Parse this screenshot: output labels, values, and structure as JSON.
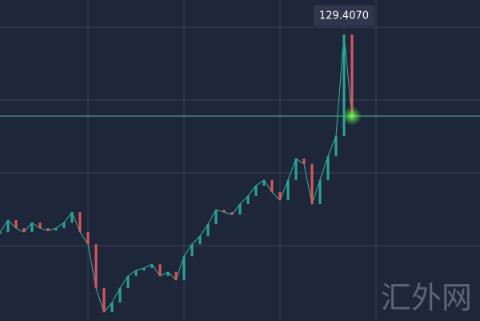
{
  "chart_data": {
    "type": "line",
    "values": [
      122.02,
      122.47,
      122.17,
      122.02,
      122.38,
      122.17,
      122.08,
      122.17,
      122.38,
      122.77,
      122.02,
      121.57,
      119.93,
      119.03,
      119.39,
      119.93,
      120.38,
      120.59,
      120.68,
      120.82,
      120.38,
      120.53,
      120.23,
      121.12,
      121.57,
      121.87,
      122.32,
      122.86,
      122.77,
      122.68,
      123.07,
      123.37,
      123.76,
      123.97,
      123.52,
      123.22,
      123.97,
      124.77,
      124.57,
      123.07,
      123.97,
      124.86,
      125.61,
      129.407,
      126.36
    ],
    "ylim": [
      118.7,
      130.7
    ],
    "annotation": {
      "index": 43,
      "label": "129.4070"
    },
    "up_color": "#26a69a",
    "down_color": "#e05555",
    "line_color": "#3bb39a"
  },
  "watermark": "汇外网"
}
